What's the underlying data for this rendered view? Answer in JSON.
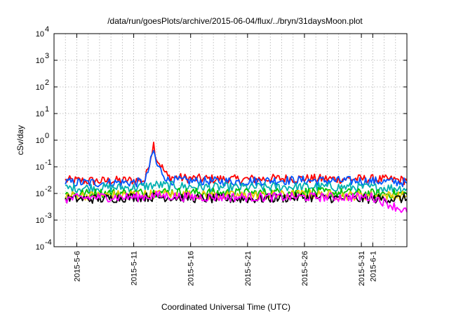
{
  "chart_data": {
    "type": "line",
    "title": "/data/run/goesPlots/archive/2015-06-04/flux/../bryn/31daysMoon.plot",
    "xlabel": "Coordinated Universal Time (UTC)",
    "ylabel": "cSv/day",
    "yscale": "log",
    "ylim": [
      0.0001,
      10000
    ],
    "y_ticks": [
      {
        "value": 0.0001,
        "base": "10",
        "exp": "-4"
      },
      {
        "value": 0.001,
        "base": "10",
        "exp": "-3"
      },
      {
        "value": 0.01,
        "base": "10",
        "exp": "-2"
      },
      {
        "value": 0.1,
        "base": "10",
        "exp": "-1"
      },
      {
        "value": 1,
        "base": "10",
        "exp": "0"
      },
      {
        "value": 10,
        "base": "10",
        "exp": "1"
      },
      {
        "value": 100,
        "base": "10",
        "exp": "2"
      },
      {
        "value": 1000,
        "base": "10",
        "exp": "3"
      },
      {
        "value": 10000,
        "base": "10",
        "exp": "4"
      }
    ],
    "xlim": [
      "2015-05-04",
      "2015-06-04"
    ],
    "x_ticks": [
      {
        "label": "2015-5-6",
        "date": "2015-05-06"
      },
      {
        "label": "2015-5-11",
        "date": "2015-05-11"
      },
      {
        "label": "2015-5-16",
        "date": "2015-05-16"
      },
      {
        "label": "2015-5-21",
        "date": "2015-05-21"
      },
      {
        "label": "2015-5-26",
        "date": "2015-05-26"
      },
      {
        "label": "2015-5-31",
        "date": "2015-05-31"
      },
      {
        "label": "2015-6-1",
        "date": "2015-06-01"
      }
    ],
    "grid": true,
    "series": [
      {
        "color": "#ff0000",
        "x": [
          "2015-05-05",
          "2015-05-08",
          "2015-05-11",
          "2015-05-12",
          "2015-05-12 18:00",
          "2015-05-13",
          "2015-05-14",
          "2015-05-16",
          "2015-05-20",
          "2015-05-24",
          "2015-05-28",
          "2015-06-01",
          "2015-06-04"
        ],
        "values": [
          0.03,
          0.028,
          0.03,
          0.03,
          0.7,
          0.2,
          0.04,
          0.035,
          0.032,
          0.035,
          0.034,
          0.033,
          0.03
        ]
      },
      {
        "color": "#0055ff",
        "x": [
          "2015-05-05",
          "2015-05-08",
          "2015-05-11",
          "2015-05-12",
          "2015-05-12 18:00",
          "2015-05-13",
          "2015-05-14",
          "2015-05-16",
          "2015-05-20",
          "2015-05-24",
          "2015-05-28",
          "2015-06-01",
          "2015-06-04"
        ],
        "values": [
          0.025,
          0.024,
          0.025,
          0.025,
          0.4,
          0.12,
          0.03,
          0.028,
          0.027,
          0.03,
          0.029,
          0.028,
          0.025
        ]
      },
      {
        "color": "#00b0b0",
        "x": [
          "2015-05-05",
          "2015-05-08",
          "2015-05-11",
          "2015-05-13",
          "2015-05-16",
          "2015-05-20",
          "2015-05-24",
          "2015-05-28",
          "2015-06-01",
          "2015-06-04"
        ],
        "values": [
          0.015,
          0.016,
          0.016,
          0.02,
          0.017,
          0.016,
          0.017,
          0.017,
          0.016,
          0.015
        ]
      },
      {
        "color": "#00c000",
        "x": [
          "2015-05-05",
          "2015-05-08",
          "2015-05-11",
          "2015-05-14",
          "2015-05-18",
          "2015-05-22",
          "2015-05-26",
          "2015-05-30",
          "2015-06-04"
        ],
        "values": [
          0.009,
          0.01,
          0.01,
          0.011,
          0.01,
          0.01,
          0.011,
          0.01,
          0.009
        ]
      },
      {
        "color": "#e6c800",
        "x": [
          "2015-05-05",
          "2015-05-08",
          "2015-05-11",
          "2015-05-14",
          "2015-05-18",
          "2015-05-22",
          "2015-05-26",
          "2015-05-30",
          "2015-06-04"
        ],
        "values": [
          0.008,
          0.008,
          0.009,
          0.009,
          0.008,
          0.008,
          0.009,
          0.008,
          0.008
        ]
      },
      {
        "color": "#000000",
        "x": [
          "2015-05-05",
          "2015-05-08",
          "2015-05-11",
          "2015-05-14",
          "2015-05-18",
          "2015-05-22",
          "2015-05-26",
          "2015-05-30",
          "2015-06-04"
        ],
        "values": [
          0.006,
          0.006,
          0.007,
          0.007,
          0.006,
          0.006,
          0.007,
          0.006,
          0.006
        ]
      },
      {
        "color": "#ff00ff",
        "x": [
          "2015-05-05",
          "2015-05-08",
          "2015-05-11",
          "2015-05-13",
          "2015-05-16",
          "2015-05-20",
          "2015-05-24",
          "2015-05-28",
          "2015-06-01",
          "2015-06-04"
        ],
        "values": [
          0.006,
          0.007,
          0.007,
          0.008,
          0.007,
          0.007,
          0.007,
          0.007,
          0.007,
          0.002
        ]
      }
    ]
  }
}
